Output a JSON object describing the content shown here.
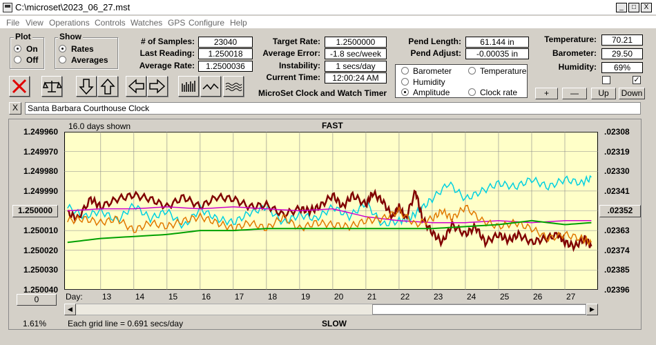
{
  "window": {
    "title": "C:\\microset\\2023_06_27.mst",
    "btn_min": "_",
    "btn_max": "□",
    "btn_close": "X"
  },
  "menu": [
    "File",
    "View",
    "Operations",
    "Controls",
    "Watches",
    "GPS",
    "Configure",
    "Help"
  ],
  "plot": {
    "title": "Plot",
    "on": "On",
    "off": "Off"
  },
  "show": {
    "title": "Show",
    "rates": "Rates",
    "averages": "Averages"
  },
  "stats": {
    "samples_label": "# of Samples:",
    "samples": "23040",
    "last_label": "Last Reading:",
    "last": "1.250018",
    "avg_label": "Average Rate:",
    "avg": "1.2500036"
  },
  "target": {
    "rate_label": "Target Rate:",
    "rate": "1.2500000",
    "err_label": "Average Error:",
    "err": "-1.8 sec/week",
    "inst_label": "Instability:",
    "inst": "1 secs/day",
    "time_label": "Current Time:",
    "time": "12:00:24 AM"
  },
  "pend": {
    "len_label": "Pend Length:",
    "len": "61.144 in",
    "adj_label": "Pend Adjust:",
    "adj": "-0.00035 in"
  },
  "env": {
    "temp_label": "Temperature:",
    "temp": "70.21",
    "baro_label": "Barometer:",
    "baro": "29.50",
    "hum_label": "Humidity:",
    "hum": "69%"
  },
  "legend": {
    "barometer": "Barometer",
    "temperature": "Temperature",
    "humidity": "Humidity",
    "amplitude": "Amplitude",
    "clock_rate": "Clock rate",
    "colors": {
      "barometer": "#e07800",
      "temperature": "#00a000",
      "humidity": "#cc00cc",
      "amplitude": "#00d0e0",
      "clock_rate": "#800000"
    }
  },
  "buttons": {
    "plus": "+",
    "minus": "—",
    "up": "Up",
    "down": "Down",
    "checkbox_right": "✓"
  },
  "app_caption": "MicroSet Clock and Watch Timer",
  "clock_name": "Santa Barbara Courthouse Clock",
  "name_close": "X",
  "graph": {
    "days_shown": "16.0 days shown",
    "fast": "FAST",
    "slow": "SLOW",
    "grid_note": "Each grid line = 0.691 secs/day",
    "zoom": "1.61%",
    "day_label": "Day:",
    "left_btn": "0",
    "center_btn": "1.250000",
    "right_btn": ".02352"
  },
  "chart_data": {
    "type": "line",
    "title": "",
    "xlabel": "Day",
    "ylabel": "",
    "x_ticks": [
      "13",
      "14",
      "15",
      "16",
      "17",
      "18",
      "19",
      "20",
      "21",
      "22",
      "23",
      "24",
      "25",
      "26",
      "27"
    ],
    "y_left_ticks": [
      "1.249960",
      "1.249970",
      "1.249980",
      "1.249990",
      "1.250000",
      "1.250010",
      "1.250020",
      "1.250030",
      "1.250040"
    ],
    "y_right_ticks": [
      ".02308",
      ".02319",
      ".02330",
      ".02341",
      ".02352",
      ".02363",
      ".02374",
      ".02385",
      ".02396"
    ],
    "ylim": [
      1.24996,
      1.25004
    ],
    "y_inverted": true,
    "xlim": [
      11.9,
      28.0
    ],
    "grid": true,
    "series": [
      {
        "key": "amplitude",
        "color": "#00d0e0",
        "x": [
          12,
          12.5,
          13,
          13.5,
          14,
          14.5,
          15,
          15.5,
          16,
          16.5,
          17,
          17.5,
          18,
          18.5,
          19,
          19.5,
          20,
          20.5,
          21,
          21.5,
          22,
          22.3,
          22.6,
          23,
          23.5,
          24,
          24.5,
          25,
          25.5,
          26,
          26.5,
          27,
          27.5,
          27.8
        ],
        "y": [
          1.249998,
          1.250003,
          1.25,
          1.250005,
          1.249997,
          1.250004,
          1.25,
          1.250008,
          1.249999,
          1.250004,
          1.250006,
          1.250001,
          1.249998,
          1.250006,
          1.250002,
          1.250004,
          1.249998,
          1.250003,
          1.249996,
          1.250007,
          1.250005,
          1.250004,
          1.25,
          1.249994,
          1.249986,
          1.249994,
          1.24999,
          1.249986,
          1.249988,
          1.249984,
          1.249988,
          1.249984,
          1.249986,
          1.249983
        ]
      },
      {
        "key": "clock_rate",
        "color": "#800000",
        "x": [
          12,
          12.3,
          12.7,
          13,
          13.5,
          14,
          14.5,
          15,
          15.5,
          16,
          16.5,
          17,
          17.5,
          18,
          18.5,
          19,
          19.3,
          19.6,
          20,
          20.3,
          20.6,
          21,
          21.2,
          21.5,
          21.8,
          22,
          22.2,
          22.5,
          22.7,
          23,
          23.3,
          23.6,
          24,
          24.3,
          24.6,
          25,
          25.3,
          25.6,
          26,
          26.4,
          26.8,
          27,
          27.3,
          27.6,
          27.8
        ],
        "y": [
          1.250001,
          1.250004,
          1.249994,
          1.249998,
          1.249994,
          1.249992,
          1.249994,
          1.249998,
          1.249993,
          1.249998,
          1.249993,
          1.249994,
          1.249998,
          1.249997,
          1.250002,
          1.249999,
          1.25,
          1.249998,
          1.249992,
          1.249998,
          1.249992,
          1.249997,
          1.249991,
          1.249995,
          1.250003,
          1.249998,
          1.250004,
          1.24999,
          1.250004,
          1.250011,
          1.250016,
          1.250007,
          1.250012,
          1.250008,
          1.250016,
          1.250012,
          1.250015,
          1.250012,
          1.250016,
          1.250014,
          1.250012,
          1.250016,
          1.250018,
          1.250014,
          1.250018
        ]
      },
      {
        "key": "humidity",
        "color": "#cc00cc",
        "x": [
          12,
          13,
          14,
          15,
          16,
          17,
          18,
          19,
          20,
          21,
          22,
          23,
          24,
          25,
          26,
          27,
          27.8
        ],
        "y": [
          1.25,
          1.249999,
          1.249999,
          1.249998,
          1.249999,
          1.249998,
          1.249999,
          1.25,
          1.249999,
          1.250003,
          1.250005,
          1.250006,
          1.250006,
          1.250005,
          1.250006,
          1.250005,
          1.250005
        ]
      },
      {
        "key": "barometer",
        "color": "#e07800",
        "x": [
          12,
          12.5,
          13,
          13.5,
          14,
          14.5,
          15,
          15.5,
          16,
          16.5,
          17,
          17.5,
          18,
          18.5,
          19,
          19.5,
          20,
          20.5,
          21,
          21.5,
          22,
          22.5,
          23,
          23.3,
          23.6,
          24,
          24.5,
          25,
          25.5,
          26,
          26.5,
          27,
          27.5,
          27.8
        ],
        "y": [
          1.250005,
          1.250004,
          1.250006,
          1.250004,
          1.25001,
          1.250006,
          1.250008,
          1.250005,
          1.250003,
          1.250006,
          1.250009,
          1.250006,
          1.250009,
          1.250003,
          1.250009,
          1.250006,
          1.250007,
          1.250008,
          1.250005,
          1.250004,
          1.25,
          1.250007,
          1.250004,
          1.25,
          1.250004,
          1.249998,
          1.250005,
          1.250008,
          1.250006,
          1.250009,
          1.250014,
          1.250012,
          1.250014,
          1.250016
        ]
      },
      {
        "key": "temperature",
        "color": "#00a000",
        "x": [
          12,
          13,
          14,
          15,
          16,
          17,
          18,
          19,
          20,
          21,
          22,
          23,
          24,
          25,
          26,
          27,
          27.8
        ],
        "y": [
          1.250016,
          1.250014,
          1.250013,
          1.250012,
          1.25001,
          1.25001,
          1.250009,
          1.250009,
          1.250009,
          1.250009,
          1.250009,
          1.250009,
          1.250008,
          1.250007,
          1.250005,
          1.250007,
          1.250006
        ]
      }
    ]
  }
}
